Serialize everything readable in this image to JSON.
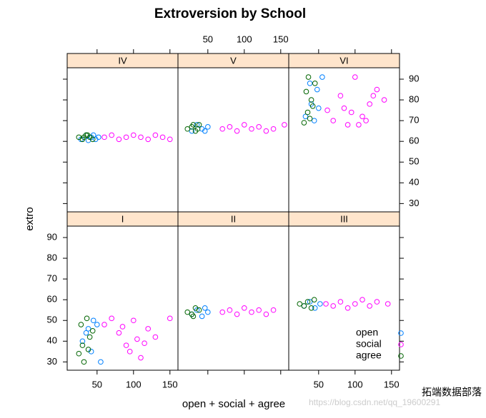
{
  "chart_data": {
    "type": "scatter",
    "title": "Extroversion by School",
    "xlabel": "open + social + agree",
    "ylabel": "extro",
    "xlim": [
      9,
      161
    ],
    "ylim": [
      26,
      95.5
    ],
    "xticks": [
      50,
      100,
      150
    ],
    "yticks": [
      30,
      40,
      50,
      60,
      70,
      80,
      90
    ],
    "strip_color": "#ffe5cc",
    "series": [
      {
        "name": "open",
        "color": "#0080ff"
      },
      {
        "name": "social",
        "color": "#ff00ff"
      },
      {
        "name": "agree",
        "color": "#006400"
      }
    ],
    "panels": [
      {
        "name": "IV",
        "groups": [
          {
            "x": [
              28,
              35,
              42,
              48,
              52,
              38,
              45
            ],
            "y": [
              61,
              63,
              62,
              61,
              62,
              60.5,
              63
            ]
          },
          {
            "x": [
              60,
              70,
              80,
              90,
              100,
              110,
              120,
              130,
              140,
              150
            ],
            "y": [
              62,
              63,
              61,
              62,
              63,
              62,
              61,
              63,
              62,
              61
            ]
          },
          {
            "x": [
              25,
              30,
              35,
              40,
              44,
              32,
              37
            ],
            "y": [
              62,
              61,
              63,
              62,
              61,
              62,
              63
            ]
          }
        ]
      },
      {
        "name": "V",
        "groups": [
          {
            "x": [
              28,
              35,
              42,
              50,
              46
            ],
            "y": [
              65,
              68,
              66,
              67,
              65
            ]
          },
          {
            "x": [
              70,
              80,
              90,
              100,
              110,
              120,
              130,
              140,
              155
            ],
            "y": [
              66,
              67,
              65,
              68,
              66,
              67,
              65,
              66,
              68
            ]
          },
          {
            "x": [
              22,
              28,
              33,
              38,
              30,
              36
            ],
            "y": [
              66,
              67,
              65,
              68,
              68,
              66
            ]
          }
        ]
      },
      {
        "name": "VI",
        "groups": [
          {
            "x": [
              32,
              40,
              48,
              55,
              44,
              50,
              38
            ],
            "y": [
              72,
              78,
              85,
              91,
              70,
              76,
              88
            ]
          },
          {
            "x": [
              62,
              70,
              80,
              90,
              100,
              110,
              120,
              130,
              140,
              95,
              105,
              85,
              115,
              125
            ],
            "y": [
              75,
              70,
              82,
              68,
              91,
              72,
              78,
              85,
              80,
              74,
              68,
              76,
              70,
              82
            ]
          },
          {
            "x": [
              30,
              35,
              40,
              45,
              33,
              38,
              42,
              36
            ],
            "y": [
              69,
              74,
              80,
              88,
              84,
              71,
              77,
              91
            ]
          }
        ]
      },
      {
        "name": "I",
        "groups": [
          {
            "x": [
              30,
              38,
              45,
              55,
              42,
              50,
              35
            ],
            "y": [
              40,
              46,
              50,
              30,
              35,
              48,
              44
            ]
          },
          {
            "x": [
              60,
              70,
              80,
              90,
              100,
              110,
              120,
              130,
              150,
              95,
              105,
              85,
              115
            ],
            "y": [
              48,
              51,
              44,
              38,
              50,
              32,
              46,
              42,
              51,
              35,
              41,
              47,
              39
            ]
          },
          {
            "x": [
              25,
              28,
              32,
              36,
              40,
              44,
              30,
              38
            ],
            "y": [
              34,
              48,
              30,
              51,
              42,
              45,
              38,
              36
            ]
          }
        ]
      },
      {
        "name": "II",
        "groups": [
          {
            "x": [
              28,
              35,
              42,
              50,
              46
            ],
            "y": [
              53,
              55,
              52,
              54,
              56
            ]
          },
          {
            "x": [
              70,
              80,
              90,
              100,
              110,
              120,
              130,
              140
            ],
            "y": [
              54,
              55,
              53,
              56,
              54,
              55,
              53,
              55
            ]
          },
          {
            "x": [
              22,
              28,
              33,
              38,
              30
            ],
            "y": [
              54,
              53,
              56,
              55,
              52
            ]
          }
        ]
      },
      {
        "name": "III",
        "groups": [
          {
            "x": [
              30,
              38,
              45,
              52
            ],
            "y": [
              57,
              59,
              56,
              58
            ]
          },
          {
            "x": [
              60,
              70,
              80,
              90,
              100,
              110,
              120,
              130,
              145
            ],
            "y": [
              58,
              57,
              59,
              56,
              58,
              60,
              57,
              59,
              58
            ]
          },
          {
            "x": [
              24,
              30,
              35,
              40,
              44
            ],
            "y": [
              58,
              57,
              59,
              56,
              60
            ]
          }
        ]
      }
    ],
    "watermark": [
      "拓端数据部落",
      "https://blog.csdn.net/qq_19600291"
    ]
  }
}
